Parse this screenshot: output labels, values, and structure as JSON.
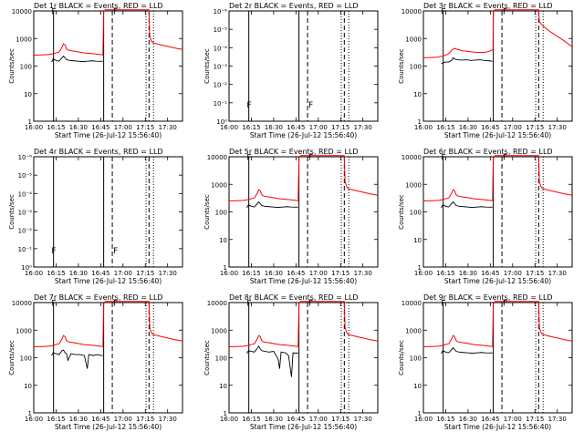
{
  "common": {
    "xlabel": "Start Time (26-Jul-12 15:56:40)",
    "ylabel": "Counts/sec",
    "x_tick_labels": [
      "16:00",
      "16:15",
      "16:30",
      "16:45",
      "17:00",
      "17:15",
      "17:30"
    ],
    "x_range_min": [
      0,
      100
    ],
    "ylim_log": [
      1,
      10000
    ],
    "log_y_tick_labels": [
      "1",
      "10",
      "100",
      "1000",
      "10000"
    ],
    "zero_y_tick_labels": [
      "10⁰",
      "10⁻¹",
      "10⁻²",
      "10⁻³",
      "10⁻⁴",
      "10⁻⁵",
      "10⁻⁶"
    ],
    "solid_vlines_min": [
      13.3,
      47.0
    ],
    "dashed_vlines_min": [
      52.8,
      77.5
    ],
    "dotted_vlines_min": [
      75.5,
      80.5
    ],
    "colors": {
      "events": "#000000",
      "lld": "#ff0000"
    }
  },
  "chart_data": [
    {
      "type": "line",
      "title": "Det 1r BLACK = Events, RED = LLD",
      "yscale": "log",
      "lld_shape": "A",
      "events_shape": "A",
      "spike": "A"
    },
    {
      "type": "line",
      "title": "Det 2r BLACK = Events, RED = LLD",
      "yscale": "zero",
      "lld_shape": "none",
      "events_shape": "none",
      "spike": "B"
    },
    {
      "type": "line",
      "title": "Det 3r BLACK = Events, RED = LLD",
      "yscale": "log",
      "lld_shape": "C",
      "events_shape": "C",
      "spike": "A"
    },
    {
      "type": "line",
      "title": "Det 4r BLACK = Events, RED = LLD",
      "yscale": "zero",
      "lld_shape": "none",
      "events_shape": "none",
      "spike": "B"
    },
    {
      "type": "line",
      "title": "Det 5r BLACK = Events, RED = LLD",
      "yscale": "log",
      "lld_shape": "A",
      "events_shape": "A",
      "spike": "A"
    },
    {
      "type": "line",
      "title": "Det 6r BLACK = Events, RED = LLD",
      "yscale": "log",
      "lld_shape": "A",
      "events_shape": "A",
      "spike": "A"
    },
    {
      "type": "line",
      "title": "Det 7r BLACK = Events, RED = LLD",
      "yscale": "log",
      "lld_shape": "A",
      "events_shape": "D",
      "spike": "A"
    },
    {
      "type": "line",
      "title": "Det 8r BLACK = Events, RED = LLD",
      "yscale": "log",
      "lld_shape": "A",
      "events_shape": "E",
      "spike": "A"
    },
    {
      "type": "line",
      "title": "Det 9r BLACK = Events, RED = LLD",
      "yscale": "log",
      "lld_shape": "A",
      "events_shape": "A",
      "spike": "A"
    }
  ],
  "series_shapes": {
    "lld": {
      "A": [
        [
          0,
          250
        ],
        [
          5,
          255
        ],
        [
          10,
          262
        ],
        [
          13,
          280
        ],
        [
          15,
          300
        ],
        [
          17,
          320
        ],
        [
          19,
          480
        ],
        [
          20,
          640
        ],
        [
          21,
          580
        ],
        [
          22,
          420
        ],
        [
          23,
          380
        ],
        [
          25,
          360
        ],
        [
          28,
          340
        ],
        [
          31,
          320
        ],
        [
          34,
          300
        ],
        [
          37,
          290
        ],
        [
          40,
          280
        ],
        [
          43,
          270
        ],
        [
          45,
          260
        ],
        [
          46.5,
          255
        ],
        [
          47,
          9000
        ],
        [
          48,
          11000
        ],
        [
          52,
          11000
        ],
        [
          55,
          11000
        ],
        [
          58,
          11000
        ],
        [
          62,
          11000
        ],
        [
          65,
          11000
        ],
        [
          70,
          11000
        ],
        [
          75,
          11000
        ],
        [
          76.5,
          11000
        ],
        [
          77.5,
          11000
        ],
        [
          78,
          1200
        ],
        [
          79,
          850
        ],
        [
          80,
          700
        ],
        [
          85,
          600
        ],
        [
          90,
          520
        ],
        [
          95,
          450
        ],
        [
          100,
          400
        ]
      ],
      "C": [
        [
          0,
          200
        ],
        [
          5,
          205
        ],
        [
          10,
          210
        ],
        [
          13,
          230
        ],
        [
          15,
          250
        ],
        [
          17,
          280
        ],
        [
          19,
          380
        ],
        [
          21,
          440
        ],
        [
          23,
          400
        ],
        [
          26,
          360
        ],
        [
          30,
          340
        ],
        [
          34,
          320
        ],
        [
          38,
          310
        ],
        [
          42,
          320
        ],
        [
          44,
          340
        ],
        [
          46,
          380
        ],
        [
          46.8,
          390
        ],
        [
          47,
          9000
        ],
        [
          48,
          11000
        ],
        [
          52,
          11000
        ],
        [
          60,
          11000
        ],
        [
          65,
          11000
        ],
        [
          70,
          11000
        ],
        [
          75,
          11000
        ],
        [
          76,
          11000
        ],
        [
          77.5,
          11000
        ],
        [
          78,
          4000
        ],
        [
          80,
          3000
        ],
        [
          85,
          1800
        ],
        [
          90,
          1200
        ],
        [
          95,
          800
        ],
        [
          100,
          500
        ]
      ]
    },
    "events": {
      "A": [
        [
          12,
          140
        ],
        [
          13,
          180
        ],
        [
          15,
          160
        ],
        [
          17,
          150
        ],
        [
          19,
          200
        ],
        [
          20,
          230
        ],
        [
          21,
          200
        ],
        [
          22,
          170
        ],
        [
          24,
          160
        ],
        [
          27,
          155
        ],
        [
          30,
          150
        ],
        [
          33,
          145
        ],
        [
          36,
          150
        ],
        [
          39,
          155
        ],
        [
          42,
          150
        ],
        [
          45,
          148
        ],
        [
          46.5,
          150
        ]
      ],
      "C": [
        [
          12,
          120
        ],
        [
          13,
          130
        ],
        [
          15,
          140
        ],
        [
          17,
          140
        ],
        [
          19,
          160
        ],
        [
          20,
          200
        ],
        [
          21,
          180
        ],
        [
          23,
          170
        ],
        [
          26,
          165
        ],
        [
          29,
          170
        ],
        [
          32,
          160
        ],
        [
          35,
          165
        ],
        [
          38,
          170
        ],
        [
          41,
          160
        ],
        [
          44,
          155
        ],
        [
          46.5,
          150
        ]
      ],
      "D": [
        [
          12,
          120
        ],
        [
          13,
          150
        ],
        [
          15,
          140
        ],
        [
          17,
          130
        ],
        [
          19,
          180
        ],
        [
          20,
          190
        ],
        [
          21,
          150
        ],
        [
          22,
          140
        ],
        [
          23,
          80
        ],
        [
          25,
          140
        ],
        [
          28,
          130
        ],
        [
          31,
          130
        ],
        [
          34,
          120
        ],
        [
          36,
          40
        ],
        [
          37,
          130
        ],
        [
          40,
          120
        ],
        [
          43,
          130
        ],
        [
          45,
          120
        ],
        [
          46.5,
          120
        ]
      ],
      "E": [
        [
          12,
          140
        ],
        [
          13,
          180
        ],
        [
          15,
          170
        ],
        [
          17,
          160
        ],
        [
          19,
          220
        ],
        [
          20,
          260
        ],
        [
          21,
          210
        ],
        [
          22,
          180
        ],
        [
          24,
          170
        ],
        [
          27,
          160
        ],
        [
          30,
          170
        ],
        [
          33,
          90
        ],
        [
          34,
          40
        ],
        [
          35,
          160
        ],
        [
          38,
          150
        ],
        [
          40,
          120
        ],
        [
          42,
          20
        ],
        [
          43,
          150
        ],
        [
          45,
          145
        ],
        [
          46.5,
          150
        ]
      ],
      "none": []
    }
  },
  "spike_markers": {
    "A": [
      [
        13.5,
        11000
      ],
      [
        55,
        11000
      ]
    ],
    "B": [
      [
        13.5,
        2
      ],
      [
        55,
        2
      ]
    ]
  }
}
